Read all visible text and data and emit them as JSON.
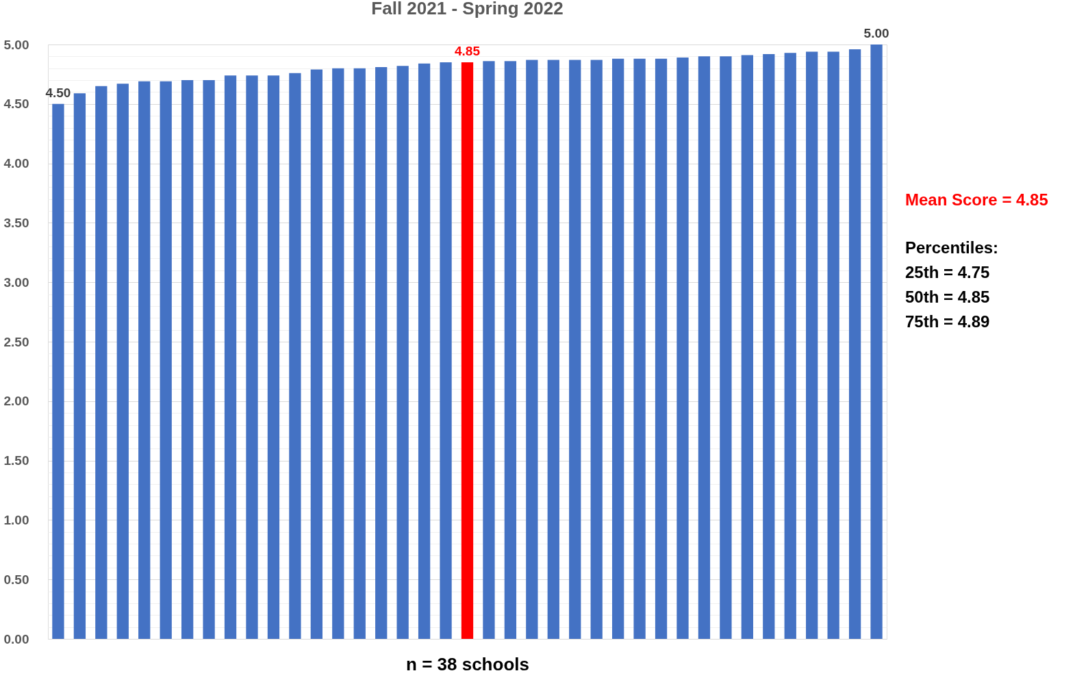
{
  "chart_data": {
    "type": "bar",
    "title": "Fall 2021 - Spring 2022",
    "xlabel": "n = 38 schools",
    "categories": [
      null,
      null,
      null,
      null,
      null,
      null,
      null,
      null,
      null,
      null,
      null,
      null,
      null,
      null,
      null,
      null,
      null,
      null,
      null,
      null,
      null,
      null,
      null,
      null,
      null,
      null,
      null,
      null,
      null,
      null,
      null,
      null,
      null,
      null,
      null,
      null,
      null,
      null,
      null
    ],
    "values": [
      4.5,
      4.59,
      4.65,
      4.67,
      4.69,
      4.69,
      4.7,
      4.7,
      4.74,
      4.74,
      4.74,
      4.76,
      4.79,
      4.8,
      4.8,
      4.81,
      4.82,
      4.84,
      4.85,
      4.85,
      4.86,
      4.86,
      4.87,
      4.87,
      4.87,
      4.87,
      4.88,
      4.88,
      4.88,
      4.89,
      4.9,
      4.9,
      4.91,
      4.92,
      4.93,
      4.94,
      4.94,
      4.96,
      5.0
    ],
    "colors": [
      "#4472c4",
      "#4472c4",
      "#4472c4",
      "#4472c4",
      "#4472c4",
      "#4472c4",
      "#4472c4",
      "#4472c4",
      "#4472c4",
      "#4472c4",
      "#4472c4",
      "#4472c4",
      "#4472c4",
      "#4472c4",
      "#4472c4",
      "#4472c4",
      "#4472c4",
      "#4472c4",
      "#4472c4",
      "#ff0000",
      "#4472c4",
      "#4472c4",
      "#4472c4",
      "#4472c4",
      "#4472c4",
      "#4472c4",
      "#4472c4",
      "#4472c4",
      "#4472c4",
      "#4472c4",
      "#4472c4",
      "#4472c4",
      "#4472c4",
      "#4472c4",
      "#4472c4",
      "#4472c4",
      "#4472c4",
      "#4472c4",
      "#4472c4"
    ],
    "value_labels": [
      "4.50",
      null,
      null,
      null,
      null,
      null,
      null,
      null,
      null,
      null,
      null,
      null,
      null,
      null,
      null,
      null,
      null,
      null,
      null,
      "4.85",
      null,
      null,
      null,
      null,
      null,
      null,
      null,
      null,
      null,
      null,
      null,
      null,
      null,
      null,
      null,
      null,
      null,
      null,
      "5.00"
    ],
    "ylim": [
      0,
      5
    ],
    "yticks": [
      {
        "value": 0,
        "label": "0.00"
      },
      {
        "value": 0.1,
        "label": null
      },
      {
        "value": 0.2,
        "label": null
      },
      {
        "value": 0.3,
        "label": null
      },
      {
        "value": 0.4,
        "label": null
      },
      {
        "value": 0.5,
        "label": "0.50"
      },
      {
        "value": 0.6,
        "label": null
      },
      {
        "value": 0.7,
        "label": null
      },
      {
        "value": 0.8,
        "label": null
      },
      {
        "value": 0.9,
        "label": null
      },
      {
        "value": 1,
        "label": "1.00"
      },
      {
        "value": 1.1,
        "label": null
      },
      {
        "value": 1.2,
        "label": null
      },
      {
        "value": 1.3,
        "label": null
      },
      {
        "value": 1.4,
        "label": null
      },
      {
        "value": 1.5,
        "label": "1.50"
      },
      {
        "value": 1.6,
        "label": null
      },
      {
        "value": 1.7,
        "label": null
      },
      {
        "value": 1.8,
        "label": null
      },
      {
        "value": 1.9,
        "label": null
      },
      {
        "value": 2,
        "label": "2.00"
      },
      {
        "value": 2.1,
        "label": null
      },
      {
        "value": 2.2,
        "label": null
      },
      {
        "value": 2.3,
        "label": null
      },
      {
        "value": 2.4,
        "label": null
      },
      {
        "value": 2.5,
        "label": "2.50"
      },
      {
        "value": 2.6,
        "label": null
      },
      {
        "value": 2.7,
        "label": null
      },
      {
        "value": 2.8,
        "label": null
      },
      {
        "value": 2.9,
        "label": null
      },
      {
        "value": 3,
        "label": "3.00"
      },
      {
        "value": 3.1,
        "label": null
      },
      {
        "value": 3.2,
        "label": null
      },
      {
        "value": 3.3,
        "label": null
      },
      {
        "value": 3.4,
        "label": null
      },
      {
        "value": 3.5,
        "label": "3.50"
      },
      {
        "value": 3.6,
        "label": null
      },
      {
        "value": 3.7,
        "label": null
      },
      {
        "value": 3.8,
        "label": null
      },
      {
        "value": 3.9,
        "label": null
      },
      {
        "value": 4,
        "label": "4.00"
      },
      {
        "value": 4.1,
        "label": null
      },
      {
        "value": 4.2,
        "label": null
      },
      {
        "value": 4.3,
        "label": null
      },
      {
        "value": 4.4,
        "label": null
      },
      {
        "value": 4.5,
        "label": "4.50"
      },
      {
        "value": 4.6,
        "label": null
      },
      {
        "value": 4.7,
        "label": null
      },
      {
        "value": 4.8,
        "label": null
      },
      {
        "value": 4.9,
        "label": null
      },
      {
        "value": 5,
        "label": "5.00"
      }
    ],
    "grid": "y",
    "annotations": [
      "Mean Score = 4.85",
      "Percentiles:",
      "25th = 4.75",
      "50th = 4.85",
      "75th = 4.89"
    ]
  }
}
